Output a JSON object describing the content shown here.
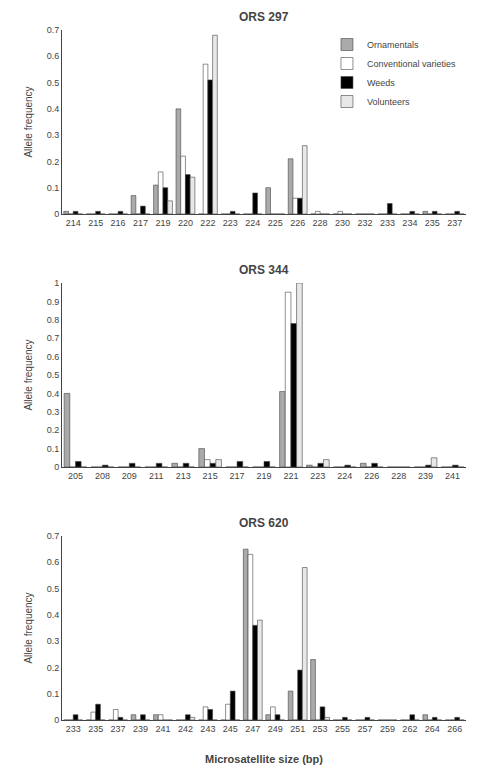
{
  "chart_data": [
    {
      "type": "bar",
      "title": "ORS 297",
      "ylabel": "Allele frequency",
      "categories": [
        "214",
        "215",
        "216",
        "217",
        "219",
        "220",
        "222",
        "223",
        "224",
        "225",
        "226",
        "228",
        "230",
        "232",
        "233",
        "234",
        "235",
        "237"
      ],
      "series": [
        {
          "name": "Ornamentals",
          "color": "#aaaaaa",
          "values": [
            0.01,
            0,
            0,
            0.07,
            0.11,
            0.4,
            0,
            0,
            0,
            0.1,
            0.21,
            0,
            0,
            0,
            0,
            0,
            0.01,
            0
          ]
        },
        {
          "name": "Conventional varieties",
          "color": "#ffffff",
          "values": [
            0,
            0,
            0,
            0,
            0.16,
            0.22,
            0.57,
            0,
            0,
            0,
            0.06,
            0.01,
            0.01,
            0,
            0,
            0,
            0,
            0
          ]
        },
        {
          "name": "Weeds",
          "color": "#000000",
          "values": [
            0.01,
            0.01,
            0.01,
            0.03,
            0.1,
            0.15,
            0.51,
            0.01,
            0.08,
            0,
            0.06,
            0,
            0,
            0,
            0.04,
            0.01,
            0.01,
            0.01
          ]
        },
        {
          "name": "Volunteers",
          "color": "#e8e8e8",
          "values": [
            0,
            0,
            0,
            0,
            0.05,
            0.14,
            0.68,
            0,
            0,
            0,
            0.26,
            0,
            0,
            0,
            0,
            0,
            0,
            0
          ]
        }
      ],
      "ylim": [
        0,
        0.7
      ],
      "yticks": [
        0,
        0.1,
        0.2,
        0.3,
        0.4,
        0.5,
        0.6,
        0.7
      ],
      "grid": false,
      "legend": "upper right"
    },
    {
      "type": "bar",
      "title": "ORS 344",
      "ylabel": "Allele frequency",
      "categories": [
        "205",
        "208",
        "209",
        "211",
        "213",
        "215",
        "217",
        "219",
        "221",
        "223",
        "224",
        "226",
        "228",
        "239",
        "241"
      ],
      "series": [
        {
          "name": "Ornamentals",
          "color": "#aaaaaa",
          "values": [
            0.4,
            0,
            0,
            0,
            0.02,
            0.1,
            0,
            0,
            0.41,
            0.01,
            0,
            0.02,
            0,
            0,
            0
          ]
        },
        {
          "name": "Conventional varieties",
          "color": "#ffffff",
          "values": [
            0,
            0,
            0,
            0,
            0,
            0.04,
            0,
            0,
            0.95,
            0,
            0,
            0,
            0,
            0,
            0
          ]
        },
        {
          "name": "Weeds",
          "color": "#000000",
          "values": [
            0.03,
            0.01,
            0.02,
            0.02,
            0.02,
            0.02,
            0.03,
            0.03,
            0.78,
            0.02,
            0.01,
            0.02,
            0,
            0.01,
            0.01
          ]
        },
        {
          "name": "Volunteers",
          "color": "#e8e8e8",
          "values": [
            0,
            0,
            0,
            0,
            0,
            0.04,
            0,
            0,
            1.0,
            0.04,
            0,
            0,
            0,
            0.05,
            0
          ]
        }
      ],
      "ylim": [
        0,
        1
      ],
      "yticks": [
        0,
        0.1,
        0.2,
        0.3,
        0.4,
        0.5,
        0.6,
        0.7,
        0.8,
        0.9,
        1
      ],
      "grid": false
    },
    {
      "type": "bar",
      "title": "ORS 620",
      "ylabel": "Allele frequency",
      "xlabel": "Microsatellite size (bp)",
      "categories": [
        "233",
        "235",
        "237",
        "239",
        "241",
        "242",
        "243",
        "245",
        "247",
        "249",
        "251",
        "253",
        "255",
        "257",
        "259",
        "262",
        "264",
        "266"
      ],
      "series": [
        {
          "name": "Ornamentals",
          "color": "#aaaaaa",
          "values": [
            0,
            0,
            0,
            0.02,
            0.02,
            0,
            0,
            0,
            0.65,
            0.02,
            0.11,
            0.23,
            0,
            0,
            0,
            0,
            0.02,
            0
          ]
        },
        {
          "name": "Conventional varieties",
          "color": "#ffffff",
          "values": [
            0,
            0.03,
            0.04,
            0,
            0.02,
            0,
            0.05,
            0.06,
            0.63,
            0.05,
            0,
            0,
            0,
            0,
            0,
            0,
            0,
            0
          ]
        },
        {
          "name": "Weeds",
          "color": "#000000",
          "values": [
            0.02,
            0.06,
            0.01,
            0.02,
            0,
            0.02,
            0.04,
            0.11,
            0.36,
            0.02,
            0.19,
            0.05,
            0.01,
            0.01,
            0,
            0.02,
            0.01,
            0.01
          ]
        },
        {
          "name": "Volunteers",
          "color": "#e8e8e8",
          "values": [
            0,
            0,
            0,
            0,
            0,
            0.01,
            0,
            0,
            0.38,
            0,
            0.58,
            0.01,
            0,
            0,
            0,
            0,
            0,
            0
          ]
        }
      ],
      "ylim": [
        0,
        0.7
      ],
      "yticks": [
        0,
        0.1,
        0.2,
        0.3,
        0.4,
        0.5,
        0.6,
        0.7
      ],
      "grid": false
    }
  ]
}
